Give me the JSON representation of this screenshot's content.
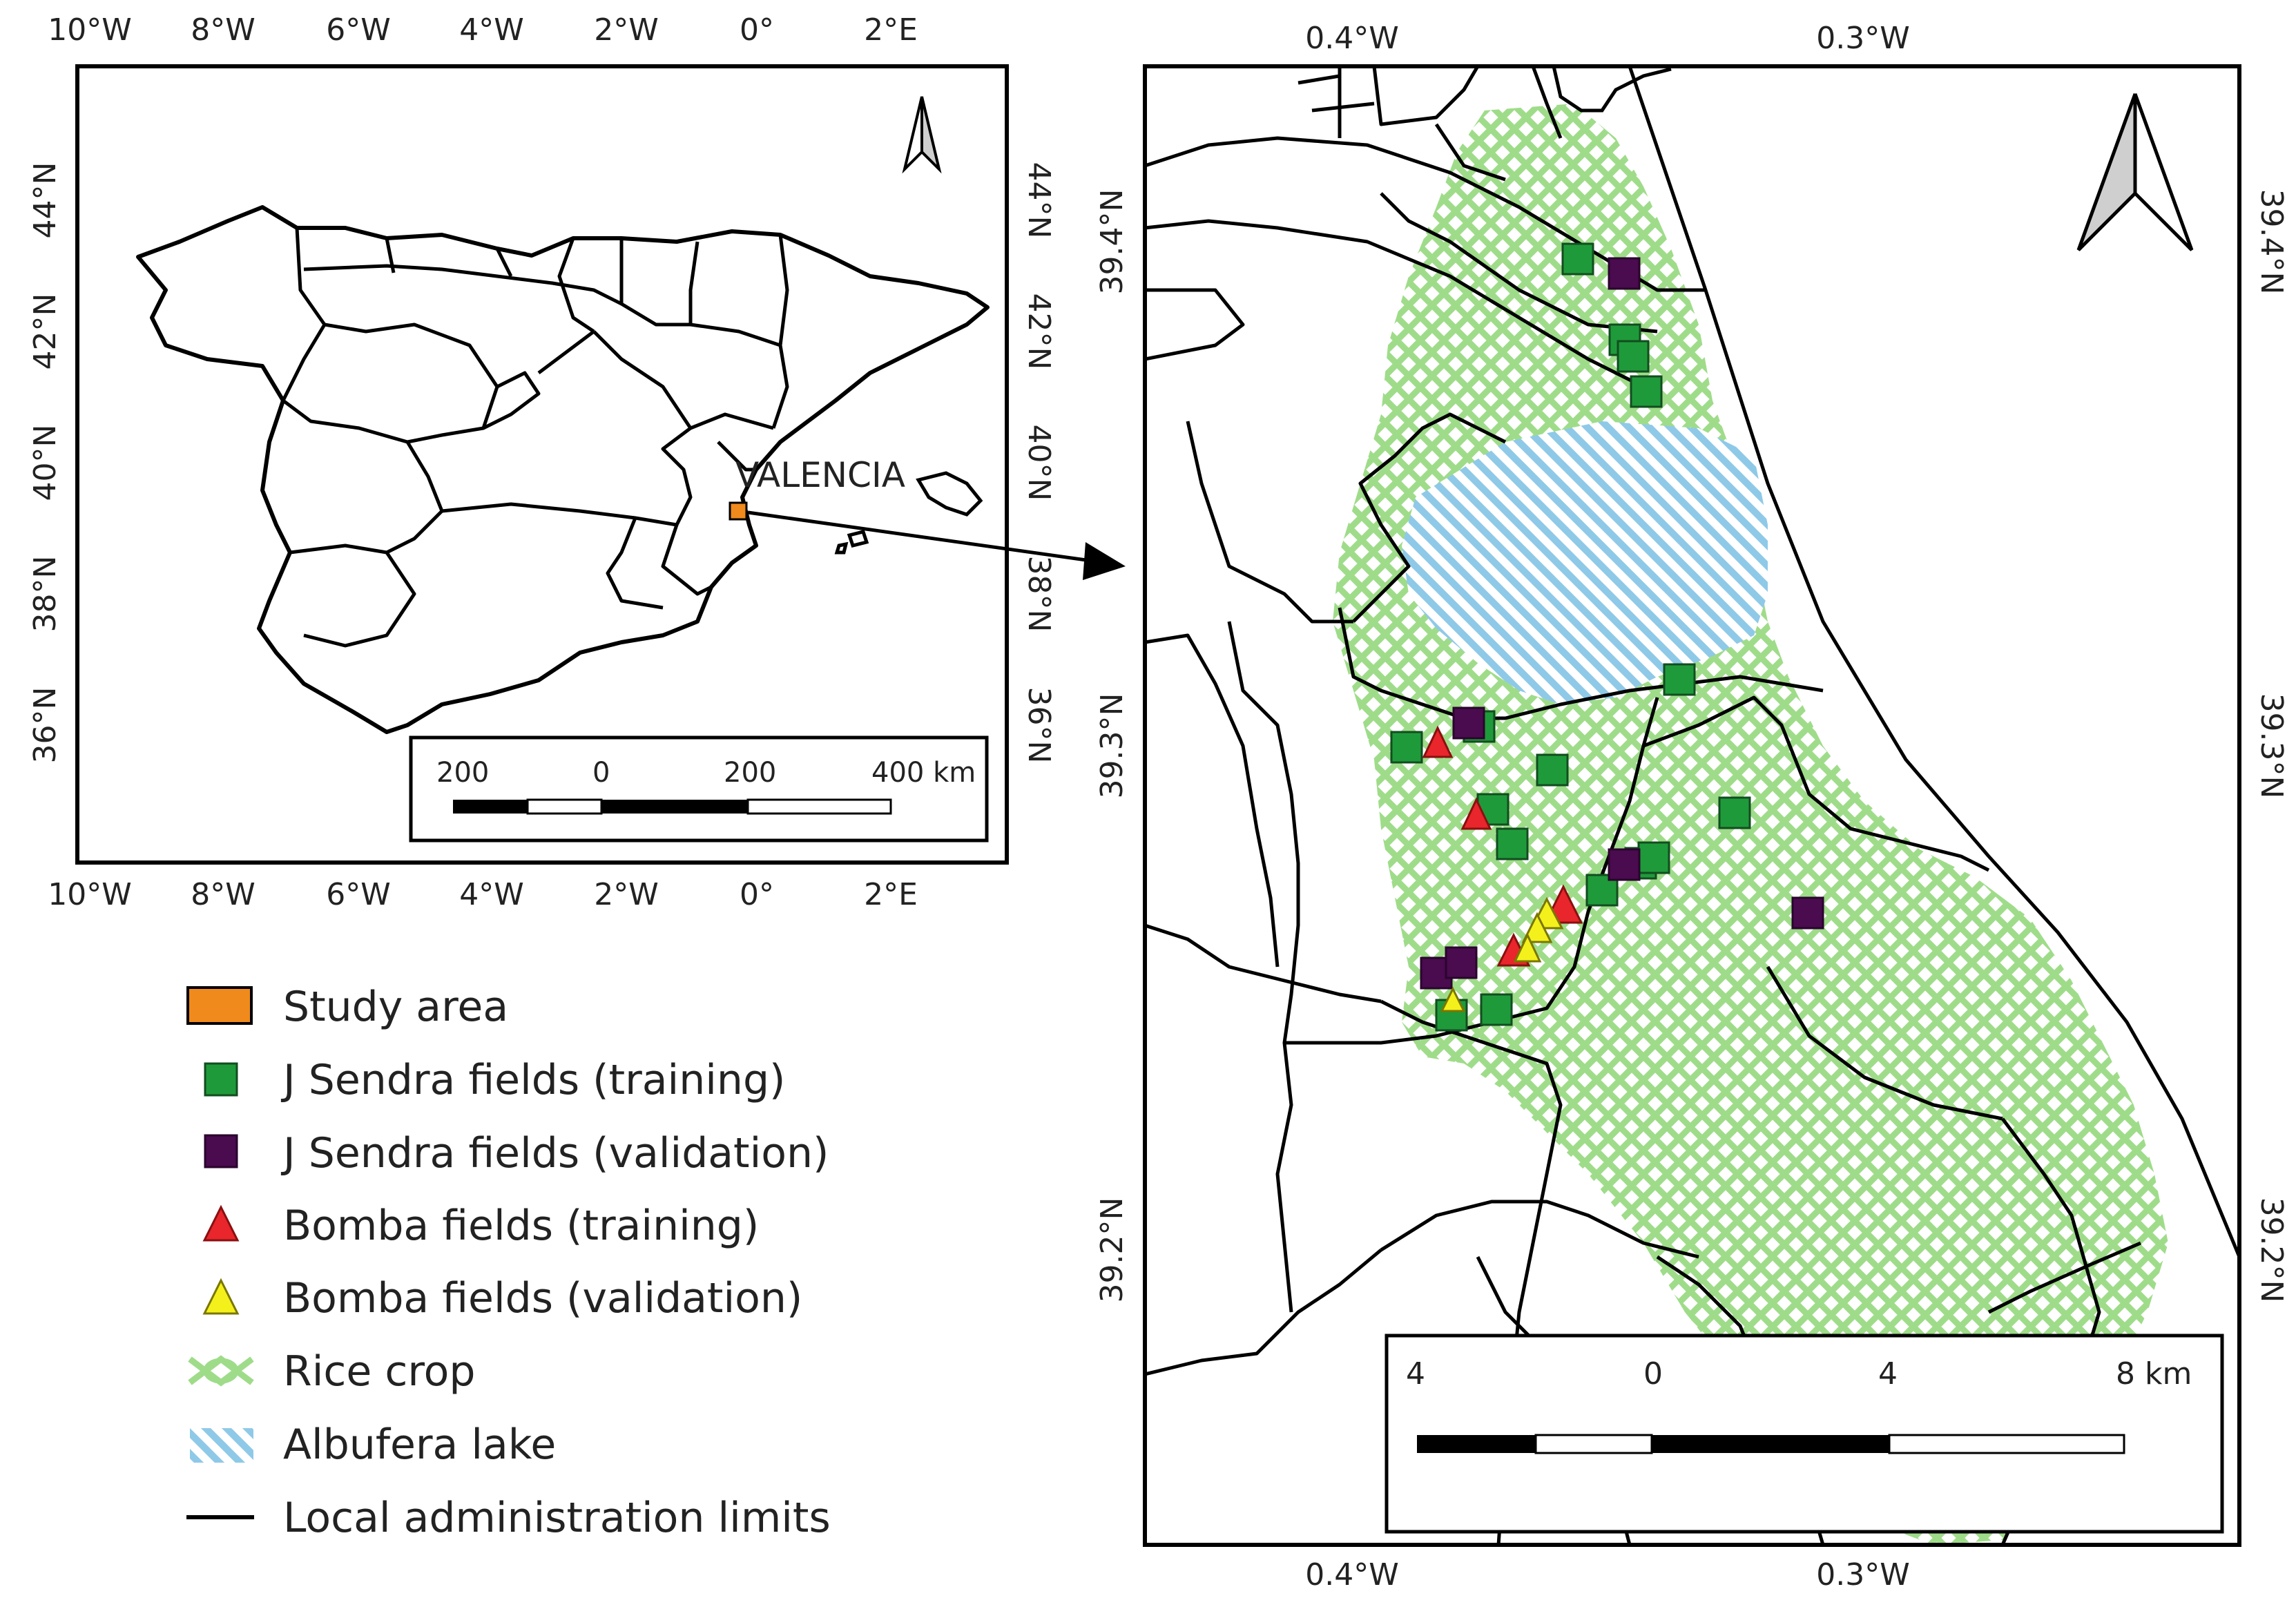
{
  "overview_map": {
    "lon_ticks_top": [
      "10°W",
      "8°W",
      "6°W",
      "4°W",
      "2°W",
      "0°",
      "2°E"
    ],
    "lon_ticks_bottom": [
      "10°W",
      "8°W",
      "6°W",
      "4°W",
      "2°W",
      "0°",
      "2°E"
    ],
    "lat_ticks_left": [
      "44°N",
      "42°N",
      "40°N",
      "38°N",
      "36°N"
    ],
    "lat_ticks_right": [
      "44°N",
      "42°N",
      "40°N",
      "38°N",
      "36°N"
    ],
    "place_label": "VALENCIA",
    "scale_bar": {
      "labels": [
        "200",
        "0",
        "200",
        "400 km"
      ]
    }
  },
  "detail_map": {
    "lon_ticks_top": [
      "0.4°W",
      "0.3°W"
    ],
    "lon_ticks_bottom": [
      "0.4°W",
      "0.3°W"
    ],
    "lat_ticks_left": [
      "39.4°N",
      "39.3°N",
      "39.2°N"
    ],
    "lat_ticks_right": [
      "39.4°N",
      "39.3°N",
      "39.2°N"
    ],
    "scale_bar": {
      "labels": [
        "4",
        "0",
        "4",
        "8 km"
      ]
    }
  },
  "legend": {
    "items": [
      {
        "label": "Study area",
        "symbol": "orange-square"
      },
      {
        "label": "J Sendra fields (training)",
        "symbol": "green-square"
      },
      {
        "label": "J Sendra fields (validation)",
        "symbol": "purple-square"
      },
      {
        "label": "Bomba fields (training)",
        "symbol": "red-triangle"
      },
      {
        "label": "Bomba fields (validation)",
        "symbol": "yellow-triangle"
      },
      {
        "label": "Rice crop",
        "symbol": "green-crosshatch"
      },
      {
        "label": "Albufera lake",
        "symbol": "blue-diagonal-hatch"
      },
      {
        "label": "Local administration limits",
        "symbol": "black-line"
      }
    ]
  },
  "colors": {
    "study_area": "#f08a1c",
    "jsendra_training": "#1f9a3a",
    "jsendra_validation": "#4a0b4f",
    "bomba_training": "#e8262b",
    "bomba_validation": "#f4f01c",
    "rice_crop": "#9fdc8a",
    "albufera_lake": "#8fc9e8",
    "limits": "#111111"
  }
}
